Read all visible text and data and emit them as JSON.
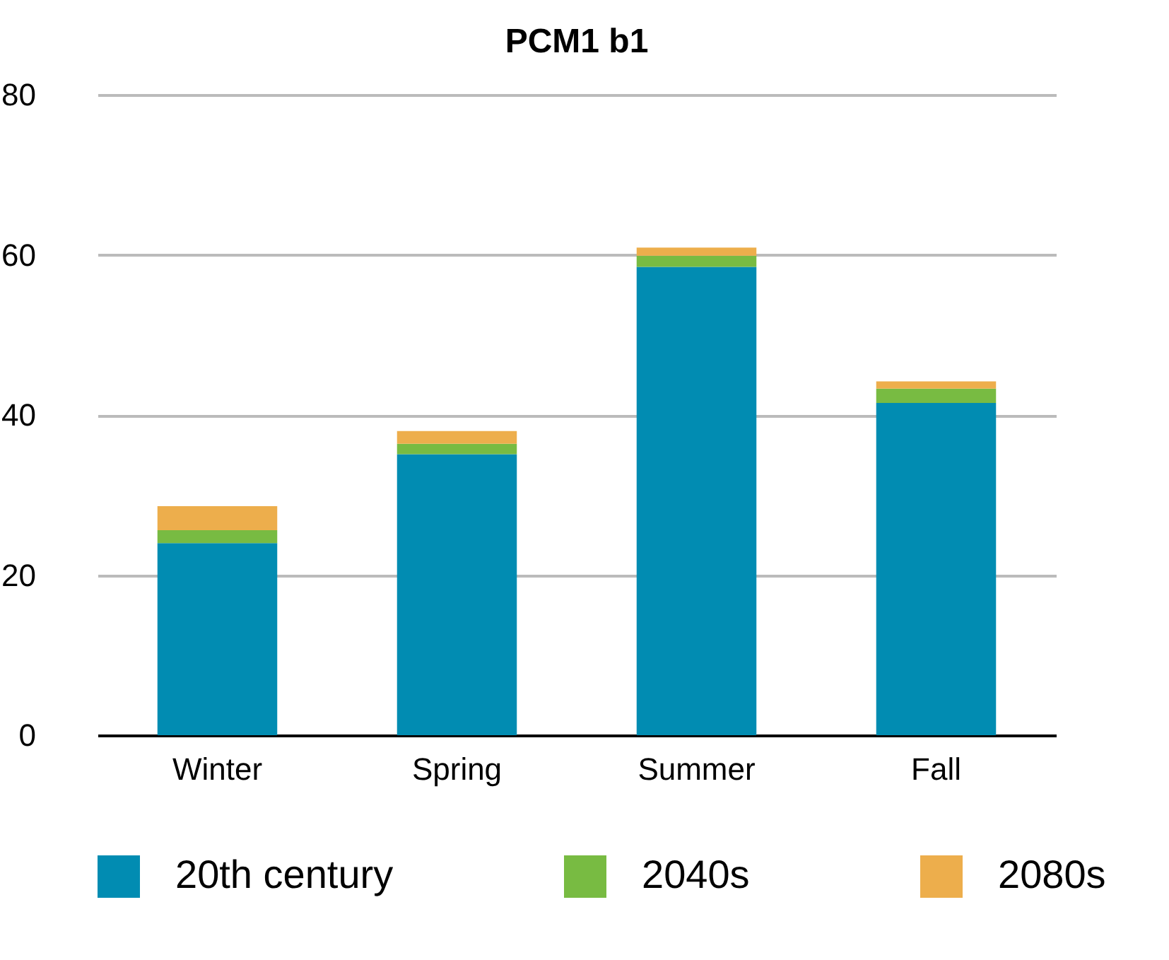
{
  "chart_data": {
    "type": "bar",
    "title": "PCM1 b1",
    "stacked": true,
    "categories": [
      "Winter",
      "Spring",
      "Summer",
      "Fall"
    ],
    "series": [
      {
        "name": "20th century",
        "color": "#018cb2",
        "values": [
          24.0,
          35.1,
          58.5,
          41.5
        ]
      },
      {
        "name": "2040s",
        "color": "#78bb42",
        "values": [
          1.6,
          1.3,
          1.4,
          1.8
        ]
      },
      {
        "name": "2080s",
        "color": "#edae4c",
        "values": [
          3.0,
          1.6,
          1.0,
          0.9
        ]
      }
    ],
    "ylim": [
      0,
      80
    ],
    "yticks": [
      0,
      20,
      40,
      60,
      80
    ],
    "grid": "y",
    "legend": "bottom"
  }
}
